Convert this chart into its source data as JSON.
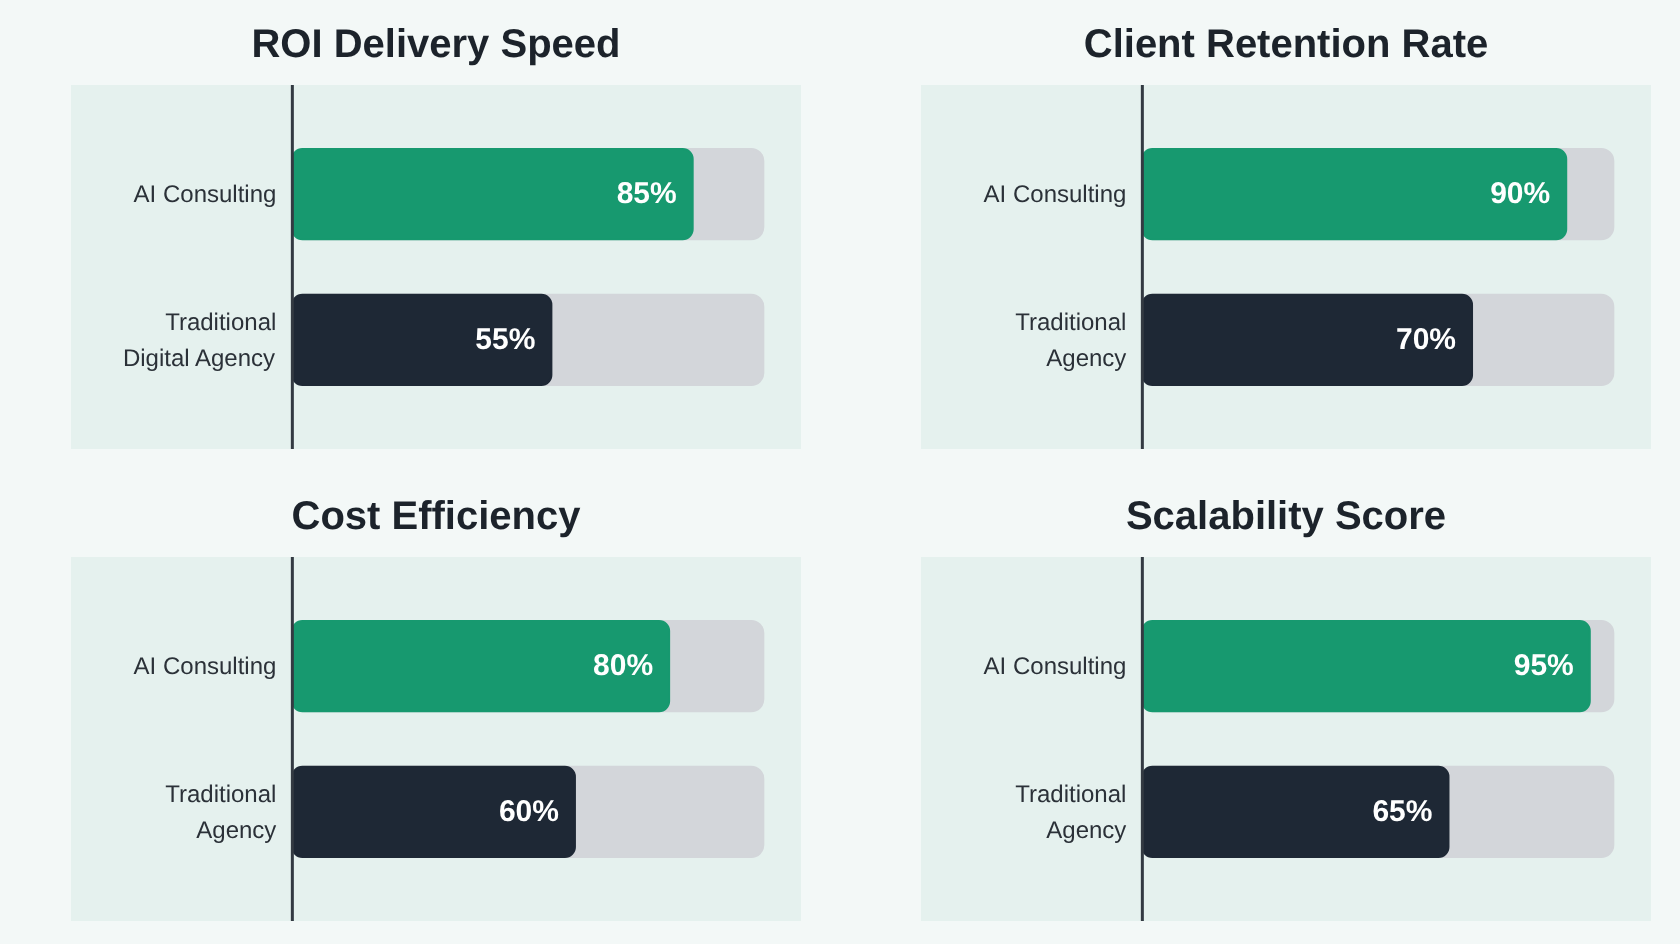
{
  "chart_data": [
    {
      "type": "bar",
      "orientation": "horizontal",
      "title": "ROI Delivery Speed",
      "categories": [
        "AI Consulting",
        "Traditional\nDigital Agency"
      ],
      "values": [
        85,
        55
      ],
      "colors": [
        "#17996f",
        "#1e2835"
      ],
      "value_labels": [
        "85%",
        "55%"
      ],
      "xlim": [
        0,
        100
      ]
    },
    {
      "type": "bar",
      "orientation": "horizontal",
      "title": "Client Retention Rate",
      "categories": [
        "AI Consulting",
        "Traditional\nAgency"
      ],
      "values": [
        90,
        70
      ],
      "colors": [
        "#17996f",
        "#1e2835"
      ],
      "value_labels": [
        "90%",
        "70%"
      ],
      "xlim": [
        0,
        100
      ]
    },
    {
      "type": "bar",
      "orientation": "horizontal",
      "title": "Cost Efficiency",
      "categories": [
        "AI Consulting",
        "Traditional\nAgency"
      ],
      "values": [
        80,
        60
      ],
      "colors": [
        "#17996f",
        "#1e2835"
      ],
      "value_labels": [
        "80%",
        "60%"
      ],
      "xlim": [
        0,
        100
      ]
    },
    {
      "type": "bar",
      "orientation": "horizontal",
      "title": "Scalability Score",
      "categories": [
        "AI Consulting",
        "Traditional\nAgency"
      ],
      "values": [
        95,
        65
      ],
      "colors": [
        "#17996f",
        "#1e2835"
      ],
      "value_labels": [
        "95%",
        "65%"
      ],
      "xlim": [
        0,
        100
      ]
    }
  ]
}
